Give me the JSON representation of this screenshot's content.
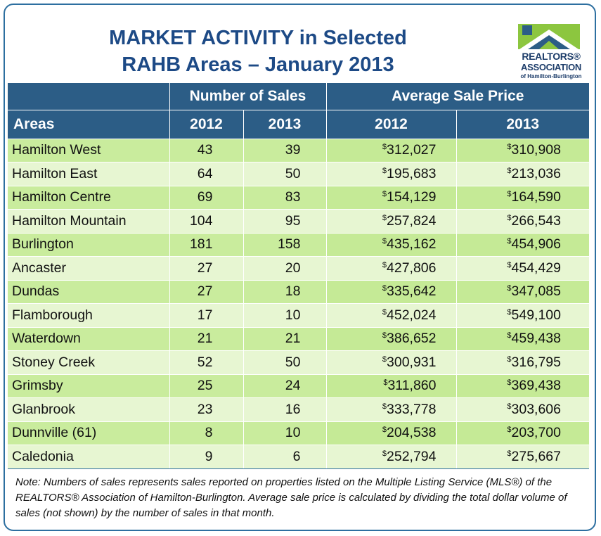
{
  "title": {
    "line1": "MARKET ACTIVITY in Selected",
    "line2": "RAHB Areas – January 2013"
  },
  "logo": {
    "line1": "REALTORS®",
    "line2": "ASSOCIATION",
    "line3": "of Hamilton-Burlington",
    "colors": {
      "green": "#8cc63f",
      "blue": "#1d3d6a"
    }
  },
  "table": {
    "group_headers": {
      "sales": "Number of Sales",
      "price": "Average Sale Price"
    },
    "columns": {
      "areas": "Areas",
      "sales_2012": "2012",
      "sales_2013": "2013",
      "price_2012": "2012",
      "price_2013": "2013"
    },
    "currency_symbol": "$",
    "rows": [
      {
        "area": "Hamilton West",
        "sales_2012": "43",
        "sales_2013": "39",
        "price_2012": "312,027",
        "price_2013": "310,908"
      },
      {
        "area": "Hamilton East",
        "sales_2012": "64",
        "sales_2013": "50",
        "price_2012": "195,683",
        "price_2013": "213,036"
      },
      {
        "area": "Hamilton Centre",
        "sales_2012": "69",
        "sales_2013": "83",
        "price_2012": "154,129",
        "price_2013": "164,590"
      },
      {
        "area": "Hamilton Mountain",
        "sales_2012": "104",
        "sales_2013": "95",
        "price_2012": "257,824",
        "price_2013": "266,543"
      },
      {
        "area": "Burlington",
        "sales_2012": "181",
        "sales_2013": "158",
        "price_2012": "435,162",
        "price_2013": "454,906"
      },
      {
        "area": "Ancaster",
        "sales_2012": "27",
        "sales_2013": "20",
        "price_2012": "427,806",
        "price_2013": "454,429"
      },
      {
        "area": "Dundas",
        "sales_2012": "27",
        "sales_2013": "18",
        "price_2012": "335,642",
        "price_2013": "347,085"
      },
      {
        "area": "Flamborough",
        "sales_2012": "17",
        "sales_2013": "10",
        "price_2012": "452,024",
        "price_2013": "549,100"
      },
      {
        "area": "Waterdown",
        "sales_2012": "21",
        "sales_2013": "21",
        "price_2012": "386,652",
        "price_2013": "459,438"
      },
      {
        "area": "Stoney Creek",
        "sales_2012": "52",
        "sales_2013": "50",
        "price_2012": "300,931",
        "price_2013": "316,795"
      },
      {
        "area": "Grimsby",
        "sales_2012": "25",
        "sales_2013": "24",
        "price_2012": "311,860",
        "price_2013": "369,438"
      },
      {
        "area": "Glanbrook",
        "sales_2012": "23",
        "sales_2013": "16",
        "price_2012": "333,778",
        "price_2013": "303,606"
      },
      {
        "area": "Dunnville (61)",
        "sales_2012": "8",
        "sales_2013": "10",
        "price_2012": "204,538",
        "price_2013": "203,700"
      },
      {
        "area": "Caledonia",
        "sales_2012": "9",
        "sales_2013": "6",
        "price_2012": "252,794",
        "price_2013": "275,667"
      }
    ]
  },
  "note": "Note:  Numbers of sales represents sales reported on properties listed on the Multiple Listing Service (MLS®) of the REALTORS® Association of Hamilton-Burlington.  Average sale price is calculated by dividing the total dollar volume of sales (not shown) by the number of sales in that month."
}
